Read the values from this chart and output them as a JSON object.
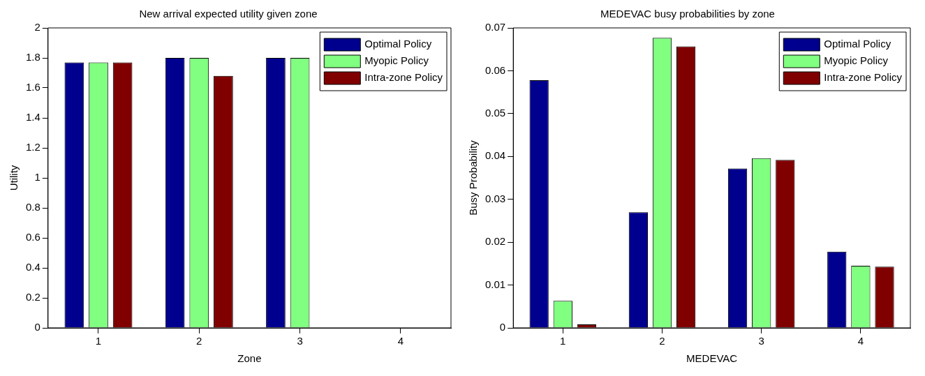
{
  "chart_data": [
    {
      "type": "bar",
      "title": "New arrival expected utility given zone",
      "xlabel": "Zone",
      "ylabel": "Utility",
      "categories": [
        "1",
        "2",
        "3",
        "4"
      ],
      "series": [
        {
          "name": "Optimal Policy",
          "color": "#00008f",
          "values": [
            1.77,
            1.8,
            1.8,
            null
          ]
        },
        {
          "name": "Myopic Policy",
          "color": "#80ff80",
          "values": [
            1.77,
            1.8,
            1.8,
            null
          ]
        },
        {
          "name": "Intra-zone Policy",
          "color": "#800000",
          "values": [
            1.77,
            1.68,
            null,
            null
          ]
        }
      ],
      "ylim": [
        0,
        2
      ],
      "yticks": [
        0,
        0.2,
        0.4,
        0.6,
        0.8,
        1,
        1.2,
        1.4,
        1.6,
        1.8,
        2
      ],
      "legend": "top right"
    },
    {
      "type": "bar",
      "title": "MEDEVAC busy probabilities by zone",
      "xlabel": "MEDEVAC",
      "ylabel": "Busy Probability",
      "categories": [
        "1",
        "2",
        "3",
        "4"
      ],
      "series": [
        {
          "name": "Optimal Policy",
          "color": "#00008f",
          "values": [
            0.0578,
            0.027,
            0.0372,
            0.0178
          ]
        },
        {
          "name": "Myopic Policy",
          "color": "#80ff80",
          "values": [
            0.0063,
            0.0677,
            0.0396,
            0.0145
          ]
        },
        {
          "name": "Intra-zone Policy",
          "color": "#800000",
          "values": [
            0.0008,
            0.0657,
            0.0392,
            0.0143
          ]
        }
      ],
      "ylim": [
        0,
        0.07
      ],
      "yticks": [
        0,
        0.01,
        0.02,
        0.03,
        0.04,
        0.05,
        0.06,
        0.07
      ],
      "legend": "top right"
    }
  ]
}
